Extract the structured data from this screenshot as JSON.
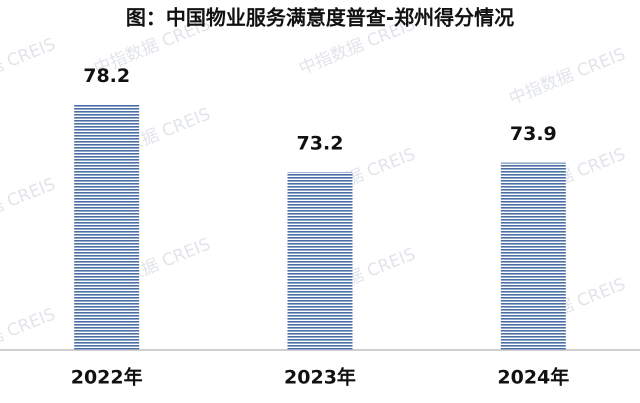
{
  "chart_data": {
    "type": "bar",
    "title": "图：中国物业服务满意度普查-郑州得分情况",
    "categories": [
      "2022年",
      "2023年",
      "2024年"
    ],
    "values": [
      78.2,
      73.2,
      73.9
    ],
    "color": "#4a6fa5",
    "ylim": [
      60,
      83
    ],
    "watermark": "中指数据 CREIS"
  }
}
